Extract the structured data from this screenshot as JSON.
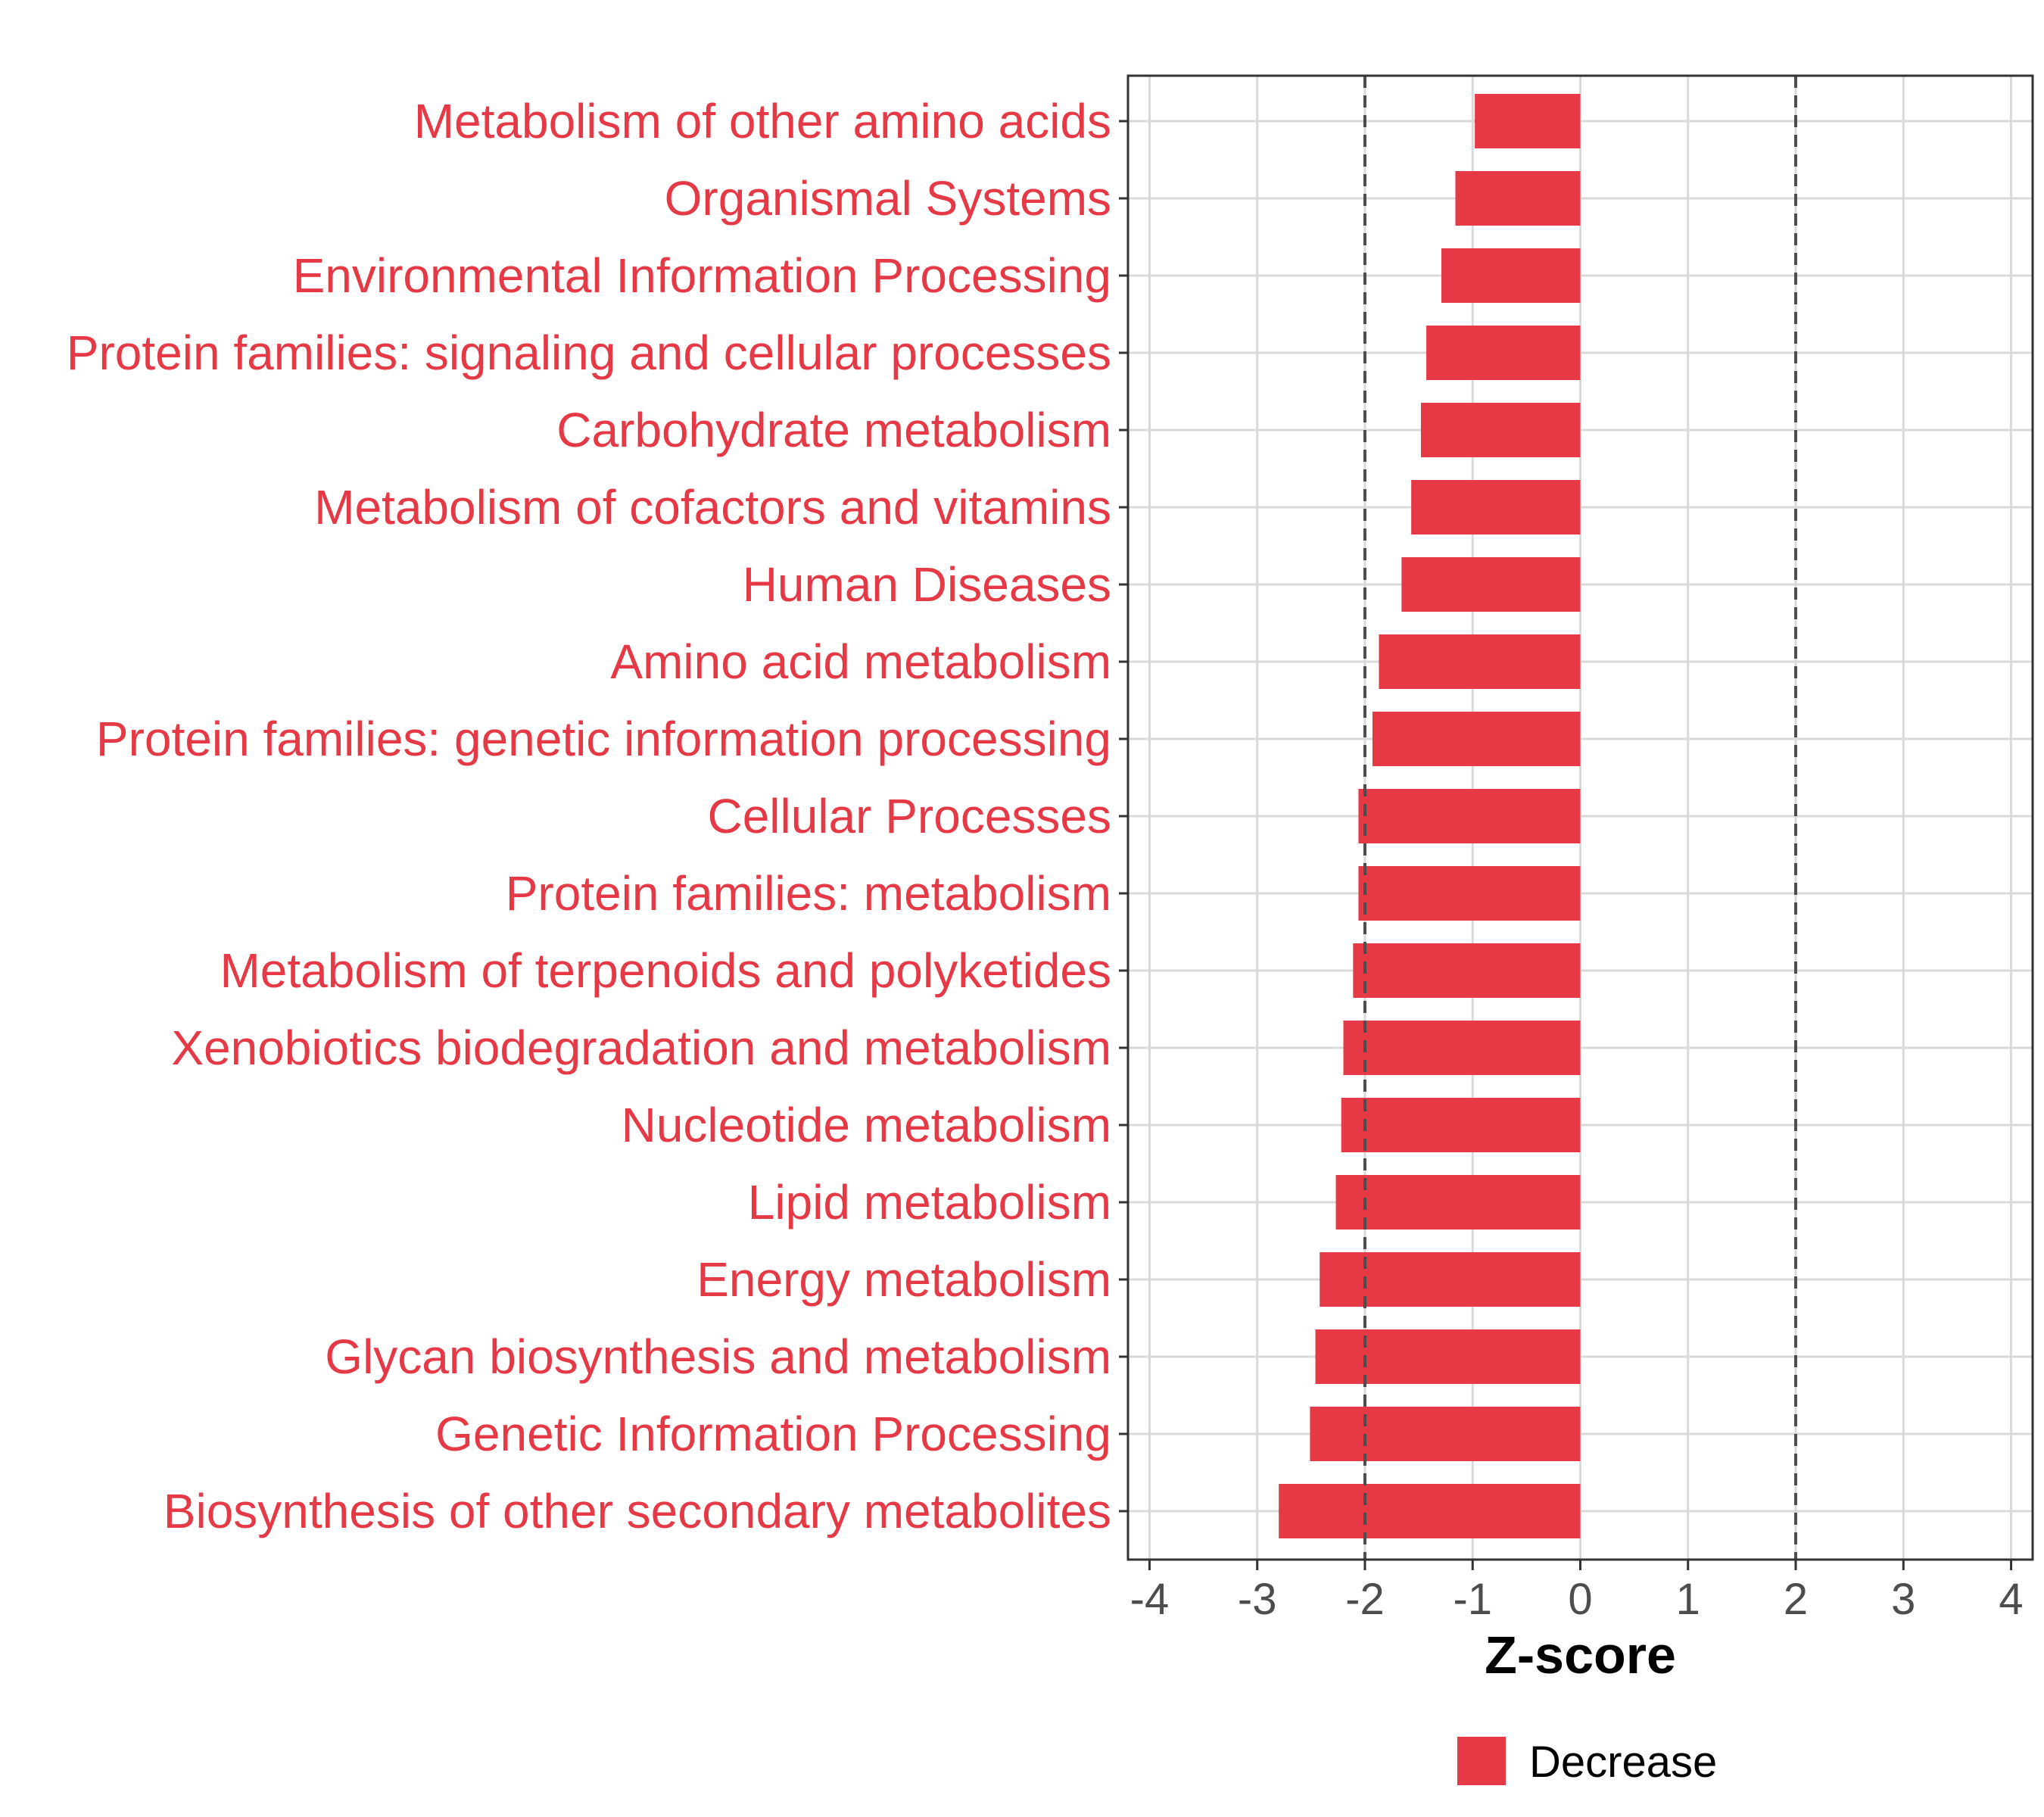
{
  "chart_data": {
    "type": "bar",
    "orientation": "horizontal",
    "categories": [
      "Metabolism of other amino acids",
      "Organismal Systems",
      "Environmental Information Processing",
      "Protein families: signaling and cellular processes",
      "Carbohydrate metabolism",
      "Metabolism of cofactors and vitamins",
      "Human Diseases",
      "Amino acid metabolism",
      "Protein families: genetic information processing",
      "Cellular Processes",
      "Protein families: metabolism",
      "Metabolism of terpenoids and polyketides",
      "Xenobiotics biodegradation and metabolism",
      "Nucleotide metabolism",
      "Lipid metabolism",
      "Energy metabolism",
      "Glycan biosynthesis and metabolism",
      "Genetic Information Processing",
      "Biosynthesis of other secondary metabolites"
    ],
    "series": [
      {
        "name": "Decrease",
        "color": "#e63946",
        "values": [
          -0.98,
          -1.16,
          -1.29,
          -1.43,
          -1.48,
          -1.57,
          -1.66,
          -1.87,
          -1.93,
          -2.06,
          -2.06,
          -2.11,
          -2.2,
          -2.22,
          -2.27,
          -2.42,
          -2.46,
          -2.51,
          -2.8
        ]
      }
    ],
    "xlabel": "Z-score",
    "ylabel": "",
    "xlim": [
      -4.2,
      4.2
    ],
    "xticks": [
      "-4",
      "-3",
      "-2",
      "-1",
      "0",
      "1",
      "2",
      "3",
      "4"
    ],
    "reference_lines": [
      -2,
      2
    ],
    "grid": true,
    "legend_position": "bottom",
    "label_color": "#e63946"
  }
}
